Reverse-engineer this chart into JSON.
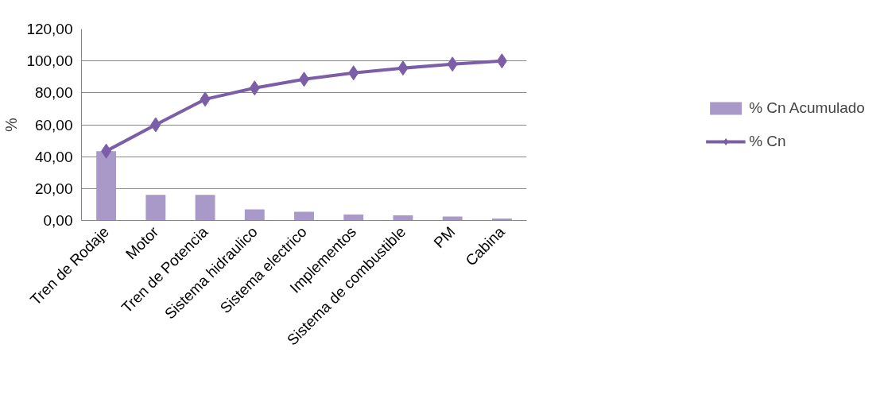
{
  "chart_data": {
    "type": "bar",
    "ylabel": "%",
    "categories": [
      "Tren de Rodaje",
      "Motor",
      "Tren de Potencia",
      "Sistema hidraulico",
      "Sistema electrico",
      "Implementos",
      "Sistema de combustible",
      "PM",
      "Cabina"
    ],
    "series": [
      {
        "name": "% Cn Acumulado",
        "color": "#a899c8",
        "values": [
          43.5,
          16,
          16,
          7,
          5.5,
          3.7,
          3.2,
          2.5,
          1.2
        ]
      },
      {
        "name": "% Cn",
        "type": "line",
        "color": "#7b5ea7",
        "values": [
          43.5,
          60,
          76,
          83,
          88.5,
          92.5,
          95.5,
          98,
          100
        ]
      }
    ],
    "ylim": [
      0,
      120
    ],
    "yticks": [
      {
        "value": 0,
        "label": "0,00"
      },
      {
        "value": 20,
        "label": "20,00"
      },
      {
        "value": 40,
        "label": "40,00"
      },
      {
        "value": 60,
        "label": "60,00"
      },
      {
        "value": 80,
        "label": "80,00"
      },
      {
        "value": 100,
        "label": "100,00"
      },
      {
        "value": 120,
        "label": "120,00"
      }
    ],
    "grid": "y",
    "legend": "right",
    "marker": "diamond",
    "line_style": "solid"
  }
}
